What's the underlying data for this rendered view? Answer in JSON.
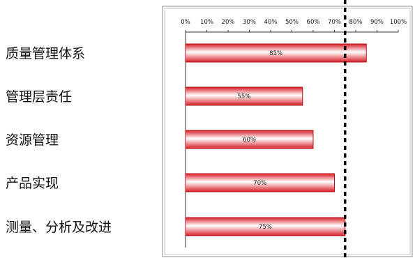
{
  "chart_data": {
    "type": "bar",
    "orientation": "horizontal",
    "categories": [
      "质量管理体系",
      "管理层责任",
      "资源管理",
      "产品实现",
      "测量、分析及改进"
    ],
    "values": [
      85,
      55,
      60,
      70,
      75
    ],
    "data_labels": [
      "85%",
      "55%",
      "60%",
      "70%",
      "75%"
    ],
    "x_ticks": [
      "0%",
      "10%",
      "20%",
      "30%",
      "40%",
      "50%",
      "60%",
      "70%",
      "80%",
      "90%",
      "100%"
    ],
    "xlim": [
      0,
      100
    ],
    "reference_line": 75,
    "bar_color": "#e8343c",
    "bar_highlight": "#ffffff",
    "reference_line_color": "#000000",
    "grid": false,
    "legend": "none",
    "title": "",
    "xlabel": "",
    "ylabel": ""
  }
}
